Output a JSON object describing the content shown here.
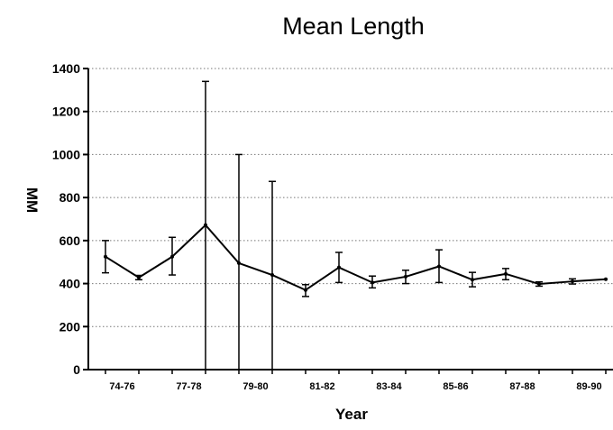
{
  "chart_data": {
    "type": "line",
    "title": "Mean Length",
    "xlabel": "Year",
    "ylabel": "MM",
    "ylim": [
      0,
      1400
    ],
    "yticks": [
      0,
      200,
      400,
      600,
      800,
      1000,
      1200,
      1400
    ],
    "grid": true,
    "legend": "none",
    "x_tick_labels": [
      "74-76",
      "77-78",
      "79-80",
      "81-82",
      "83-84",
      "85-86",
      "87-88",
      "89-90"
    ],
    "series": [
      {
        "points": [
          {
            "x": 1,
            "y": 525,
            "low": 450,
            "high": 600
          },
          {
            "x": 2,
            "y": 428,
            "low": 418,
            "high": 438
          },
          {
            "x": 3,
            "y": 525,
            "low": 440,
            "high": 615
          },
          {
            "x": 4,
            "y": 672,
            "low": 0,
            "high": 1340
          },
          {
            "x": 5,
            "y": 495,
            "low": 0,
            "high": 1000
          },
          {
            "x": 6,
            "y": 440,
            "low": 0,
            "high": 875
          },
          {
            "x": 7,
            "y": 370,
            "low": 340,
            "high": 395
          },
          {
            "x": 8,
            "y": 475,
            "low": 405,
            "high": 545
          },
          {
            "x": 9,
            "y": 405,
            "low": 380,
            "high": 435
          },
          {
            "x": 10,
            "y": 432,
            "low": 400,
            "high": 462
          },
          {
            "x": 11,
            "y": 480,
            "low": 405,
            "high": 557
          },
          {
            "x": 12,
            "y": 418,
            "low": 385,
            "high": 452
          },
          {
            "x": 13,
            "y": 445,
            "low": 418,
            "high": 470
          },
          {
            "x": 14,
            "y": 398,
            "low": 388,
            "high": 408
          },
          {
            "x": 15,
            "y": 410,
            "low": 398,
            "high": 422
          },
          {
            "x": 16,
            "y": 420,
            "low": 420,
            "high": 420
          }
        ]
      }
    ]
  }
}
